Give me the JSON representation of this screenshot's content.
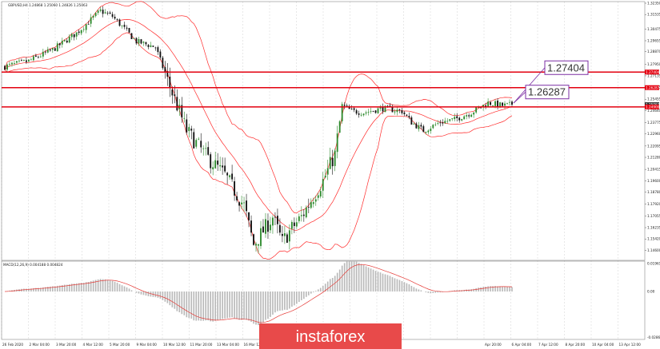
{
  "header": {
    "symbol_line": "GBPUSD,H4 1.24868 1.25060 1.24826 1.25063"
  },
  "indicator": {
    "label": "MACD(12,26,9) 0.004188 0.004824"
  },
  "brand": {
    "logo_text": "instaforex"
  },
  "colors": {
    "background": "#ffffff",
    "grid": "#d9d9d9",
    "bull": "#2e8b2e",
    "bear": "#111111",
    "bands": "#ff2a2a",
    "level": "#e3000f",
    "annotation_border": "#7b2ea3",
    "histogram": "#b9b9b9",
    "signal": "#e53935",
    "logo_bg": "#e84a4a"
  },
  "chart_data": [
    {
      "type": "candlestick",
      "title": "GBPUSD,H4",
      "ylim": [
        1.14,
        1.3235
      ],
      "y_ticks": [
        "1.32350",
        "1.31535",
        "1.30475",
        "1.29655",
        "1.28870",
        "1.27950",
        "1.27135",
        "1.26315",
        "1.25455",
        "1.24640",
        "1.23775",
        "1.22960",
        "1.22095",
        "1.21280",
        "1.20415",
        "1.19600",
        "1.18780",
        "1.17920",
        "1.17055",
        "1.16235",
        "1.15420",
        "1.14600",
        "1.13735"
      ],
      "x_ticks": [
        "26 Feb 2020",
        "2 Mar 04:00",
        "3 Mar 20:00",
        "4 Mar 12:00",
        "5 Mar 20:00",
        "9 Mar 04:00",
        "10 Mar 12:00",
        "11 Mar 20:00",
        "13 Mar 04:00",
        "16 Mar 12:00",
        "17 Mar 20:00",
        "19 Mar 04:00",
        "20 Mar 12:00",
        "",
        "",
        "",
        "",
        "",
        "Apr 20:00",
        "6 Apr 04:00",
        "7 Apr 12:00",
        "8 Apr 20:00",
        "10 Apr 04:00",
        "13 Apr 12:00"
      ],
      "price_boxes": [
        "1.27404",
        "1.26287",
        "1.25063",
        "1.24900"
      ],
      "horizontal_levels": [
        1.27404,
        1.26287,
        1.249
      ],
      "annotations": [
        {
          "text": "1.27404",
          "level": 1.27404
        },
        {
          "text": "1.26287",
          "level": 1.26287
        }
      ],
      "close_anchors": [
        [
          0,
          1.278
        ],
        [
          10,
          1.282
        ],
        [
          20,
          1.29
        ],
        [
          30,
          1.302
        ],
        [
          40,
          1.318
        ],
        [
          45,
          1.314
        ],
        [
          55,
          1.296
        ],
        [
          63,
          1.292
        ],
        [
          68,
          1.268
        ],
        [
          76,
          1.232
        ],
        [
          84,
          1.214
        ],
        [
          92,
          1.2
        ],
        [
          100,
          1.178
        ],
        [
          104,
          1.15
        ],
        [
          108,
          1.16
        ],
        [
          112,
          1.17
        ],
        [
          116,
          1.152
        ],
        [
          120,
          1.162
        ],
        [
          124,
          1.17
        ],
        [
          128,
          1.182
        ],
        [
          133,
          1.196
        ],
        [
          138,
          1.215
        ],
        [
          141,
          1.25
        ],
        [
          145,
          1.246
        ],
        [
          150,
          1.245
        ],
        [
          158,
          1.248
        ],
        [
          166,
          1.246
        ],
        [
          170,
          1.238
        ],
        [
          175,
          1.232
        ],
        [
          182,
          1.238
        ],
        [
          188,
          1.24
        ],
        [
          195,
          1.245
        ],
        [
          202,
          1.252
        ],
        [
          208,
          1.25
        ],
        [
          212,
          1.2506
        ]
      ],
      "candle_count": 213,
      "bands": {
        "type": "Bollinger",
        "period": 20,
        "deviation": 2
      }
    },
    {
      "type": "histogram",
      "title": "MACD(12,26,9)",
      "ylim": [
        -0.03,
        0.019
      ],
      "y_ticks": [
        "0.019612",
        "0.00",
        "-0.028675"
      ],
      "series": [
        {
          "kind": "bars",
          "source": "MACD main"
        },
        {
          "kind": "line",
          "source": "Signal"
        }
      ]
    }
  ]
}
